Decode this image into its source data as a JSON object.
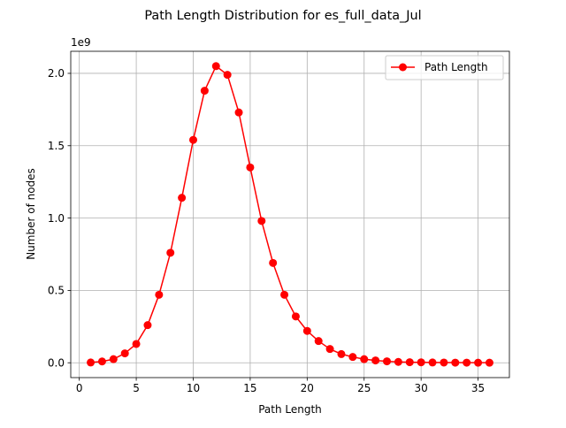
{
  "chart_data": {
    "type": "line",
    "title": "Path Length Distribution for es_full_data_Jul",
    "xlabel": "Path Length",
    "ylabel": "Number of nodes",
    "y_offset_label": "1e9",
    "xlim": [
      -0.75,
      37.75
    ],
    "ylim": [
      -0.1025,
      2.1525
    ],
    "x_ticks": [
      0,
      5,
      10,
      15,
      20,
      25,
      30,
      35
    ],
    "x_tick_labels": [
      "0",
      "5",
      "10",
      "15",
      "20",
      "25",
      "30",
      "35"
    ],
    "y_ticks": [
      0.0,
      0.5,
      1.0,
      1.5,
      2.0
    ],
    "y_tick_labels": [
      "0.0",
      "0.5",
      "1.0",
      "1.5",
      "2.0"
    ],
    "grid": true,
    "legend_position": "top-right",
    "series": [
      {
        "name": "Path Length",
        "color": "#ff0000",
        "marker": "circle",
        "x": [
          1,
          2,
          3,
          4,
          5,
          6,
          7,
          8,
          9,
          10,
          11,
          12,
          13,
          14,
          15,
          16,
          17,
          18,
          19,
          20,
          21,
          22,
          23,
          24,
          25,
          26,
          27,
          28,
          29,
          30,
          31,
          32,
          33,
          34,
          35,
          36
        ],
        "values": [
          0.002,
          0.009,
          0.025,
          0.065,
          0.13,
          0.26,
          0.47,
          0.76,
          1.14,
          1.54,
          1.88,
          2.05,
          1.99,
          1.73,
          1.35,
          0.98,
          0.69,
          0.47,
          0.32,
          0.22,
          0.15,
          0.095,
          0.06,
          0.04,
          0.025,
          0.016,
          0.01,
          0.006,
          0.004,
          0.003,
          0.002,
          0.0015,
          0.001,
          0.0008,
          0.0005,
          0.0003
        ]
      }
    ]
  }
}
